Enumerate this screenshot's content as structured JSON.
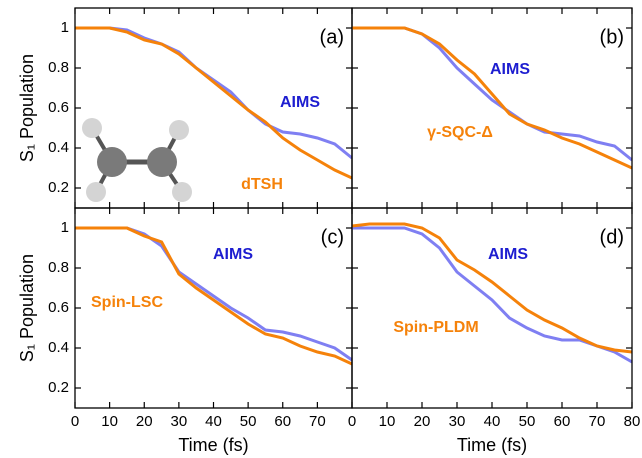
{
  "chart_data": [
    {
      "type": "line",
      "annotation": "(a)",
      "ylabel": "S₁ Population",
      "x": [
        0,
        5,
        10,
        15,
        20,
        25,
        30,
        35,
        40,
        45,
        50,
        55,
        60,
        65,
        70,
        75,
        80
      ],
      "series": [
        {
          "name": "AIMS",
          "color": "#7f7ff2",
          "label_color": "#1d1dd0",
          "values": [
            1,
            1,
            1,
            0.99,
            0.95,
            0.92,
            0.88,
            0.8,
            0.74,
            0.68,
            0.59,
            0.52,
            0.48,
            0.47,
            0.45,
            0.42,
            0.35
          ]
        },
        {
          "name": "dTSH",
          "color": "#f5820a",
          "label_color": "#f5820a",
          "values": [
            1,
            1,
            1,
            0.98,
            0.94,
            0.92,
            0.87,
            0.8,
            0.73,
            0.66,
            0.59,
            0.53,
            0.45,
            0.39,
            0.34,
            0.29,
            0.25
          ]
        }
      ],
      "xlim": [
        0,
        80
      ],
      "ylim": [
        0.1,
        1.1
      ],
      "xticks": [
        0,
        10,
        20,
        30,
        40,
        50,
        60,
        70
      ],
      "yticks": [
        0.2,
        0.4,
        0.6,
        0.8,
        1.0
      ],
      "show_xtick_labels": false,
      "show_ytick_labels": true
    },
    {
      "type": "line",
      "annotation": "(b)",
      "x": [
        0,
        5,
        10,
        15,
        20,
        25,
        30,
        35,
        40,
        45,
        50,
        55,
        60,
        65,
        70,
        75,
        80
      ],
      "series": [
        {
          "name": "AIMS",
          "color": "#7f7ff2",
          "label_color": "#1d1dd0",
          "values": [
            1,
            1,
            1,
            1,
            0.97,
            0.9,
            0.8,
            0.72,
            0.64,
            0.58,
            0.52,
            0.48,
            0.47,
            0.46,
            0.43,
            0.41,
            0.34
          ]
        },
        {
          "name": "γ-SQC-Δ",
          "color": "#f5820a",
          "label_color": "#f5820a",
          "values": [
            1,
            1,
            1,
            1,
            0.97,
            0.92,
            0.84,
            0.77,
            0.67,
            0.57,
            0.52,
            0.49,
            0.45,
            0.42,
            0.38,
            0.34,
            0.3
          ]
        }
      ],
      "xlim": [
        0,
        80
      ],
      "ylim": [
        0.1,
        1.1
      ],
      "xticks": [
        0,
        10,
        20,
        30,
        40,
        50,
        60,
        70,
        80
      ],
      "yticks": [
        0.2,
        0.4,
        0.6,
        0.8,
        1.0
      ],
      "show_xtick_labels": false,
      "show_ytick_labels": false
    },
    {
      "type": "line",
      "annotation": "(c)",
      "ylabel": "S₁ Population",
      "xlabel": "Time (fs)",
      "x": [
        0,
        5,
        10,
        15,
        20,
        25,
        30,
        35,
        40,
        45,
        50,
        55,
        60,
        65,
        70,
        75,
        80
      ],
      "series": [
        {
          "name": "AIMS",
          "color": "#7f7ff2",
          "label_color": "#1d1dd0",
          "values": [
            1,
            1,
            1,
            1,
            0.97,
            0.91,
            0.78,
            0.72,
            0.66,
            0.6,
            0.55,
            0.49,
            0.48,
            0.46,
            0.43,
            0.4,
            0.34
          ]
        },
        {
          "name": "Spin-LSC",
          "color": "#f5820a",
          "label_color": "#f5820a",
          "values": [
            1,
            1,
            1,
            1,
            0.96,
            0.93,
            0.77,
            0.7,
            0.64,
            0.58,
            0.52,
            0.47,
            0.45,
            0.41,
            0.38,
            0.36,
            0.32
          ]
        }
      ],
      "xlim": [
        0,
        80
      ],
      "ylim": [
        0.1,
        1.1
      ],
      "xticks": [
        0,
        10,
        20,
        30,
        40,
        50,
        60,
        70
      ],
      "yticks": [
        0.2,
        0.4,
        0.6,
        0.8,
        1.0
      ],
      "show_xtick_labels": true,
      "show_ytick_labels": true
    },
    {
      "type": "line",
      "annotation": "(d)",
      "xlabel": "Time (fs)",
      "x": [
        0,
        5,
        10,
        15,
        20,
        25,
        30,
        35,
        40,
        45,
        50,
        55,
        60,
        65,
        70,
        75,
        80
      ],
      "series": [
        {
          "name": "AIMS",
          "color": "#7f7ff2",
          "label_color": "#1d1dd0",
          "values": [
            1,
            1,
            1,
            1,
            0.97,
            0.9,
            0.78,
            0.71,
            0.64,
            0.55,
            0.5,
            0.46,
            0.44,
            0.44,
            0.41,
            0.38,
            0.33
          ]
        },
        {
          "name": "Spin-PLDM",
          "color": "#f5820a",
          "label_color": "#f5820a",
          "values": [
            1.01,
            1.02,
            1.02,
            1.02,
            1.0,
            0.95,
            0.84,
            0.79,
            0.73,
            0.66,
            0.59,
            0.54,
            0.5,
            0.45,
            0.41,
            0.39,
            0.38
          ]
        }
      ],
      "xlim": [
        0,
        80
      ],
      "ylim": [
        0.1,
        1.1
      ],
      "xticks": [
        0,
        10,
        20,
        30,
        40,
        50,
        60,
        70,
        80
      ],
      "yticks": [
        0.2,
        0.4,
        0.6,
        0.8,
        1.0
      ],
      "show_xtick_labels": true,
      "show_ytick_labels": false
    }
  ]
}
